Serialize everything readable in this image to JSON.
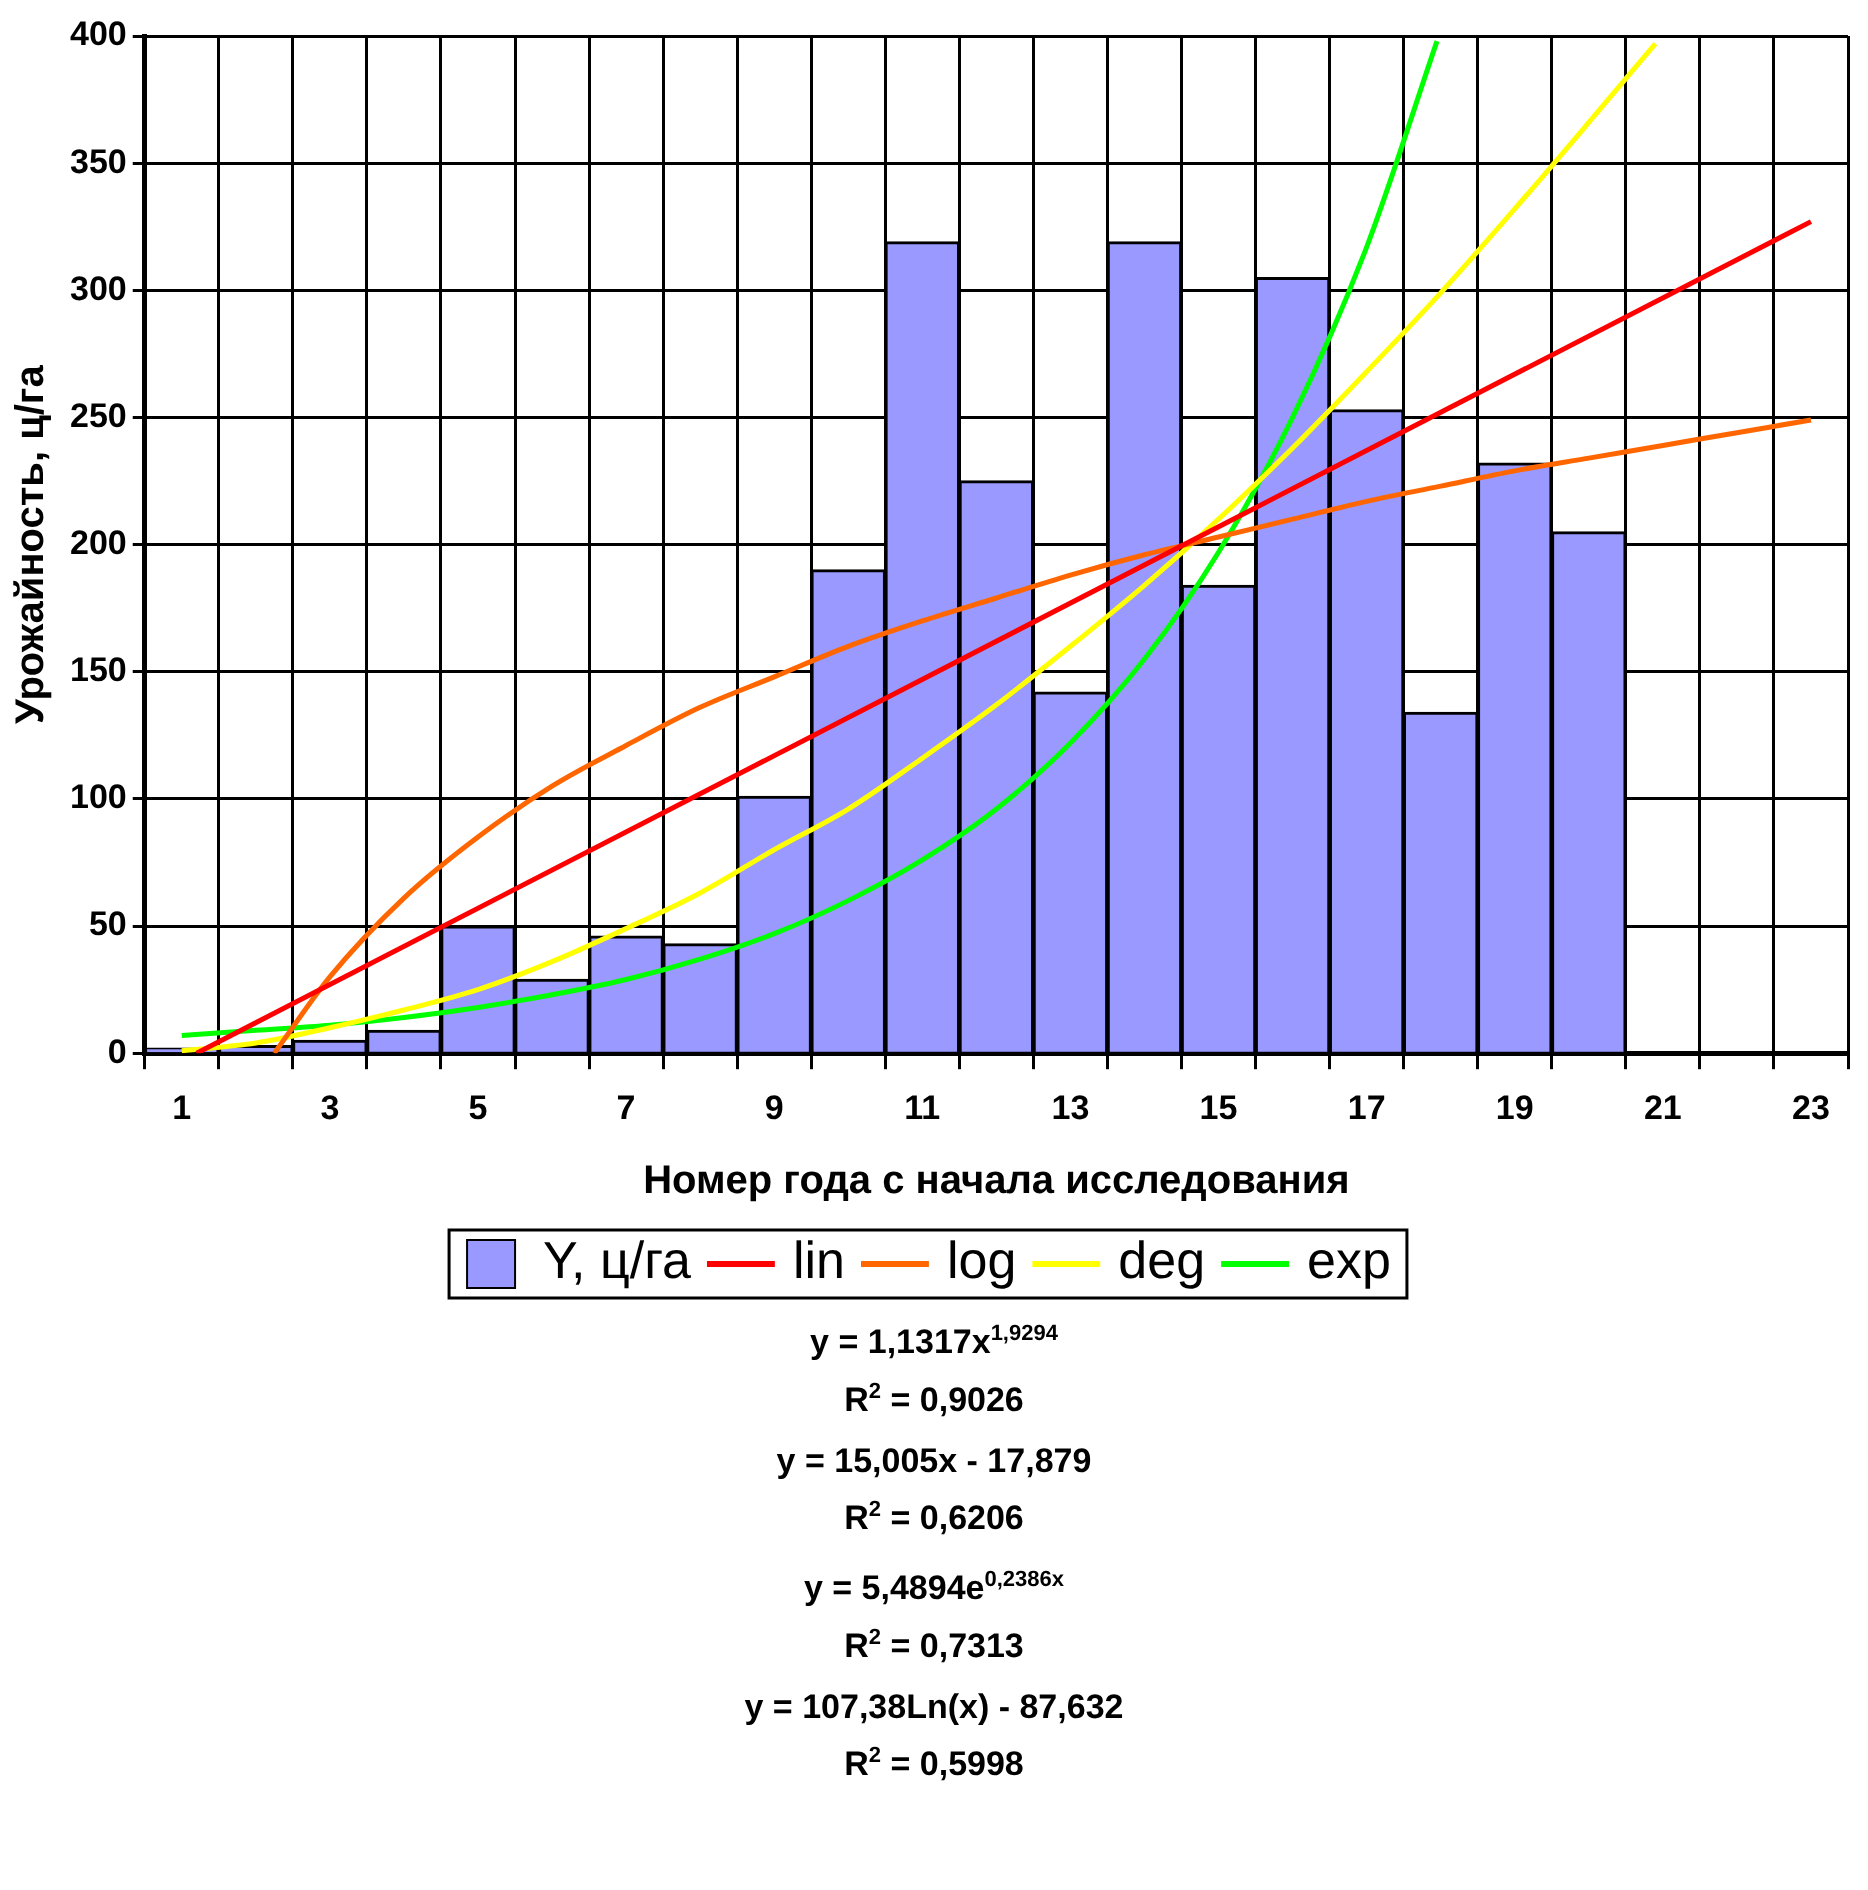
{
  "chart_data": {
    "type": "bar",
    "xlabel": "Номер года с начала исследования",
    "ylabel": "Урожайность, ц/га",
    "xlim": [
      0.5,
      23.5
    ],
    "xticks": [
      {
        "value": 0.5,
        "label": null
      },
      1,
      {
        "value": 1.5,
        "label": null
      },
      {
        "value": 2.5,
        "label": null
      },
      3,
      {
        "value": 3.5,
        "label": null
      },
      {
        "value": 4.5,
        "label": null
      },
      5,
      {
        "value": 5.5,
        "label": null
      },
      {
        "value": 6.5,
        "label": null
      },
      7,
      {
        "value": 7.5,
        "label": null
      },
      {
        "value": 8.5,
        "label": null
      },
      9,
      {
        "value": 9.5,
        "label": null
      },
      {
        "value": 10.5,
        "label": null
      },
      11,
      {
        "value": 11.5,
        "label": null
      },
      {
        "value": 12.5,
        "label": null
      },
      13,
      {
        "value": 13.5,
        "label": null
      },
      {
        "value": 14.5,
        "label": null
      },
      15,
      {
        "value": 15.5,
        "label": null
      },
      {
        "value": 16.5,
        "label": null
      },
      17,
      {
        "value": 17.5,
        "label": null
      },
      {
        "value": 18.5,
        "label": null
      },
      19,
      {
        "value": 19.5,
        "label": null
      },
      {
        "value": 20.5,
        "label": null
      },
      21,
      {
        "value": 21.5,
        "label": null
      },
      {
        "value": 22.5,
        "label": null
      },
      23,
      {
        "value": 23.5,
        "label": null
      }
    ],
    "ylim": [
      0,
      400
    ],
    "yticks": [
      0,
      50,
      100,
      150,
      200,
      250,
      300,
      350,
      400
    ],
    "grid": true,
    "legend": "bottom",
    "series": [
      {
        "name": "Y, ц/га",
        "color": "#9999ff",
        "x": [
          1,
          2,
          3,
          4,
          5,
          6,
          7,
          8,
          9,
          10,
          11,
          12,
          13,
          14,
          15,
          16,
          17,
          18,
          19,
          20
        ],
        "values": [
          2,
          3,
          5,
          9,
          50,
          29,
          46,
          43,
          101,
          190,
          319,
          225,
          142,
          319,
          184,
          305,
          253,
          134,
          232,
          205
        ]
      },
      {
        "name": "lin",
        "type": "line",
        "color": "#ff0000",
        "x": [
          1.2,
          23
        ],
        "values": [
          0,
          327
        ]
      },
      {
        "name": "log",
        "type": "line",
        "color": "#ff6600",
        "x": [
          2.25,
          3,
          4,
          5,
          6,
          7,
          8,
          9,
          10,
          11,
          12,
          13,
          14,
          15,
          16,
          17,
          18,
          19,
          20,
          21,
          22,
          23
        ],
        "values": [
          0,
          30,
          61,
          85,
          105,
          121,
          136,
          148,
          160,
          170,
          179,
          188,
          196,
          203,
          210,
          217,
          223,
          229,
          234,
          239,
          244,
          249
        ]
      },
      {
        "name": "deg",
        "type": "line",
        "color": "#ffff00",
        "x": [
          1,
          2,
          3,
          4,
          5,
          6,
          7,
          8,
          9,
          10,
          11,
          12,
          13,
          14,
          15,
          16,
          17,
          18,
          19,
          20,
          20.9
        ],
        "values": [
          1,
          4,
          10,
          17,
          25,
          36,
          49,
          63,
          80,
          96,
          116,
          137,
          160,
          184,
          210,
          238,
          268,
          299,
          332,
          366,
          397
        ]
      },
      {
        "name": "exp",
        "type": "line",
        "color": "#00ff00",
        "x": [
          1,
          2,
          3,
          4,
          5,
          6,
          7,
          8,
          9,
          10,
          11,
          12,
          13,
          14,
          15,
          16,
          17,
          17.95
        ],
        "values": [
          7,
          9,
          11,
          14,
          18,
          23,
          29,
          37,
          47,
          60,
          76,
          96,
          122,
          155,
          197,
          250,
          317,
          398
        ]
      }
    ],
    "annotations": [
      "y = 1,1317x$^{1,9294}$",
      "R$^{2}$ = 0,9026",
      "y = 15,005x - 17,879",
      "R$^{2}$ = 0,6206",
      "y = 5,4894e$^{0,2386x}$",
      "R$^{2}$ = 0,7313",
      "y = 107,38Ln(x) - 87,632",
      "R$^{2}$ = 0,5998"
    ]
  }
}
